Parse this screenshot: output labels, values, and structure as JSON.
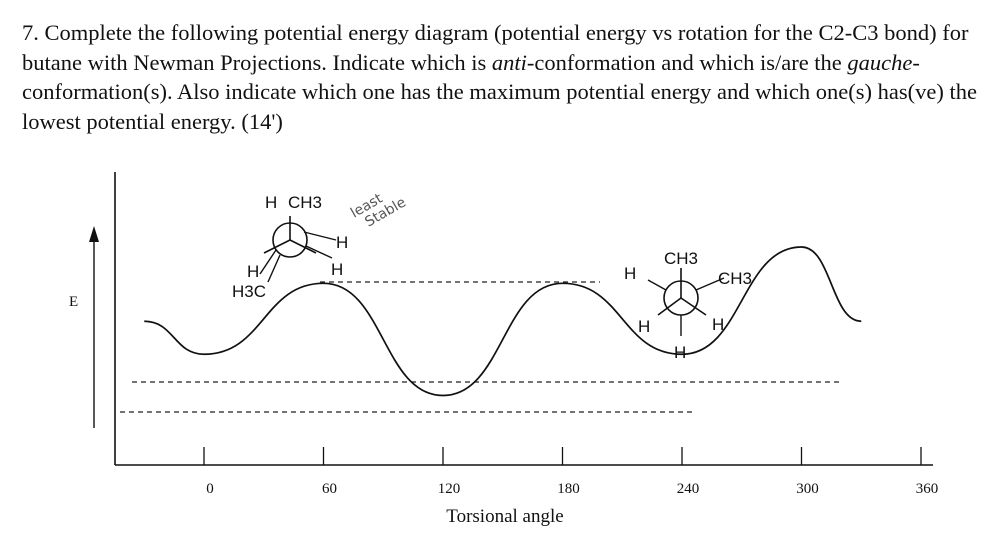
{
  "question": {
    "number": "7.",
    "part1": "Complete the following potential energy diagram (potential energy vs rotation for the C2-C3 bond) for butane with Newman Projections.  Indicate which is ",
    "anti": "anti",
    "part2": "-conformation and which is/are the ",
    "gauche": "gauche",
    "part3": "-conformation(s). Also indicate which one has the maximum potential energy and which one(s) has(ve) the lowest potential energy. (14')"
  },
  "chart_data": {
    "type": "line",
    "ylabel": "E",
    "xlabel": "Torsional angle",
    "x_ticks": [
      0,
      60,
      120,
      180,
      240,
      300,
      360
    ],
    "x_tick_labels": [
      "0",
      "60",
      "120",
      "180",
      "240",
      "300",
      "360"
    ],
    "series": [
      {
        "x": [
          -30,
          0,
          60,
          120,
          180,
          240,
          300,
          330
        ],
        "y": [
          0.55,
          0.35,
          0.78,
          0.1,
          0.78,
          0.35,
          1.0,
          0.55
        ]
      }
    ]
  },
  "newman_1": {
    "front_top_left": "H",
    "front_top_right": "CH3",
    "back_right_top": "H",
    "back_right_bottom": "H",
    "front_left_top": "H",
    "front_left_bottom": "H3C"
  },
  "newman_2": {
    "top": "CH3",
    "back_top_right": "CH3",
    "back_top_left": "H",
    "front_bottom_left": "H",
    "front_bottom_right": "H",
    "bottom": "H"
  },
  "annotation": {
    "line1": "least",
    "line2": "Stable"
  }
}
